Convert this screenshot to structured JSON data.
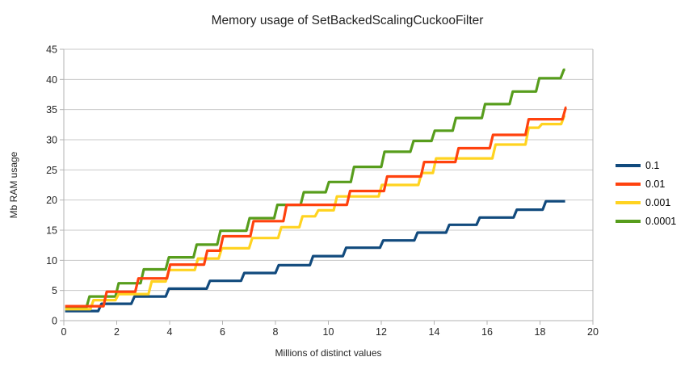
{
  "title": "Memory usage of SetBackedScalingCuckooFilter",
  "legend": {
    "position": "right",
    "entries": [
      {
        "label": "0.1",
        "color": "#114a7d"
      },
      {
        "label": "0.01",
        "color": "#ff420e"
      },
      {
        "label": "0.001",
        "color": "#ffd320"
      },
      {
        "label": "0.0001",
        "color": "#579d1c"
      }
    ]
  },
  "chart_data": {
    "type": "line",
    "interpolation": "step-after",
    "title": "Memory usage of SetBackedScalingCuckooFilter",
    "xlabel": "Millions of distinct values",
    "ylabel": "Mb RAM usage",
    "xlim": [
      0,
      20
    ],
    "ylim": [
      0,
      45
    ],
    "x_ticks": [
      0,
      2,
      4,
      6,
      8,
      10,
      12,
      14,
      16,
      18,
      20
    ],
    "y_ticks": [
      0,
      5,
      10,
      15,
      20,
      25,
      30,
      35,
      40,
      45
    ],
    "grid": true,
    "colors": {
      "grid": "#c9c9c9",
      "axis": "#b3b3b3",
      "text": "#262626"
    },
    "series": [
      {
        "name": "0.1",
        "color": "#114a7d",
        "end_x": 18.95,
        "points": [
          [
            0.05,
            1.6
          ],
          [
            1.3,
            2.8
          ],
          [
            2.55,
            4.0
          ],
          [
            3.85,
            5.3
          ],
          [
            5.4,
            6.6
          ],
          [
            6.7,
            7.9
          ],
          [
            8.0,
            9.2
          ],
          [
            9.3,
            10.7
          ],
          [
            10.55,
            12.1
          ],
          [
            11.95,
            13.3
          ],
          [
            13.25,
            14.6
          ],
          [
            14.45,
            15.9
          ],
          [
            15.6,
            17.1
          ],
          [
            17.0,
            18.4
          ],
          [
            18.1,
            19.8
          ]
        ]
      },
      {
        "name": "0.01",
        "color": "#ff420e",
        "end_x": 19.0,
        "points": [
          [
            0.05,
            2.4
          ],
          [
            1.5,
            4.8
          ],
          [
            2.7,
            7.0
          ],
          [
            3.9,
            9.3
          ],
          [
            5.3,
            11.6
          ],
          [
            5.9,
            14.0
          ],
          [
            7.05,
            16.5
          ],
          [
            8.3,
            19.2
          ],
          [
            10.7,
            21.5
          ],
          [
            12.1,
            23.9
          ],
          [
            13.5,
            26.3
          ],
          [
            14.8,
            28.6
          ],
          [
            16.1,
            30.8
          ],
          [
            17.45,
            33.4
          ],
          [
            18.85,
            35.3
          ]
        ]
      },
      {
        "name": "0.001",
        "color": "#ffd320",
        "end_x": 18.95,
        "points": [
          [
            0.05,
            1.9
          ],
          [
            1.0,
            3.4
          ],
          [
            1.95,
            4.4
          ],
          [
            3.2,
            6.5
          ],
          [
            3.85,
            8.4
          ],
          [
            4.95,
            10.3
          ],
          [
            5.85,
            12.0
          ],
          [
            7.0,
            13.7
          ],
          [
            8.1,
            15.5
          ],
          [
            8.9,
            17.3
          ],
          [
            9.5,
            18.3
          ],
          [
            10.2,
            20.6
          ],
          [
            11.9,
            22.5
          ],
          [
            13.4,
            24.5
          ],
          [
            13.95,
            26.9
          ],
          [
            16.2,
            29.2
          ],
          [
            17.45,
            32.0
          ],
          [
            17.95,
            32.6
          ],
          [
            18.8,
            34.0
          ]
        ]
      },
      {
        "name": "0.0001",
        "color": "#579d1c",
        "end_x": 18.95,
        "points": [
          [
            0.05,
            2.1
          ],
          [
            0.85,
            4.0
          ],
          [
            1.95,
            6.2
          ],
          [
            2.9,
            8.5
          ],
          [
            3.85,
            10.5
          ],
          [
            4.9,
            12.6
          ],
          [
            5.8,
            14.9
          ],
          [
            6.9,
            17.0
          ],
          [
            7.95,
            19.2
          ],
          [
            8.95,
            21.3
          ],
          [
            9.9,
            23.0
          ],
          [
            10.85,
            25.5
          ],
          [
            12.0,
            28.0
          ],
          [
            13.1,
            29.8
          ],
          [
            13.9,
            31.5
          ],
          [
            14.7,
            33.6
          ],
          [
            15.8,
            35.9
          ],
          [
            16.85,
            38.0
          ],
          [
            17.85,
            40.2
          ],
          [
            18.78,
            41.6
          ]
        ]
      }
    ],
    "draw_order": [
      0,
      3,
      2,
      1
    ]
  }
}
